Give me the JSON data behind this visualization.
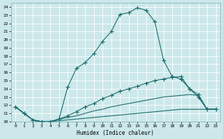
{
  "xlabel": "Humidex (Indice chaleur)",
  "bg_color": "#cce8ea",
  "line_color": "#1a6b6b",
  "grid_color": "#b8d8da",
  "xlim": [
    -0.5,
    23.5
  ],
  "ylim": [
    10,
    24.5
  ],
  "xticks": [
    0,
    1,
    2,
    3,
    4,
    5,
    6,
    7,
    8,
    9,
    10,
    11,
    12,
    13,
    14,
    15,
    16,
    17,
    18,
    19,
    20,
    21,
    22,
    23
  ],
  "yticks": [
    10,
    11,
    12,
    13,
    14,
    15,
    16,
    17,
    18,
    19,
    20,
    21,
    22,
    23,
    24
  ],
  "line1_x": [
    0,
    1,
    2,
    3,
    4,
    5,
    6,
    7,
    8,
    9,
    10,
    11,
    12,
    13,
    14,
    15,
    16,
    17,
    18,
    19,
    20,
    21,
    22,
    23
  ],
  "line1_y": [
    11.8,
    11.0,
    10.2,
    9.8,
    9.9,
    10.3,
    14.2,
    16.5,
    17.2,
    18.3,
    19.8,
    21.0,
    23.1,
    23.3,
    23.9,
    23.6,
    22.2,
    17.5,
    15.5,
    15.2,
    14.0,
    13.0,
    11.5,
    11.5
  ],
  "line2_x": [
    0,
    1,
    2,
    3,
    4,
    5,
    6,
    7,
    8,
    9,
    10,
    11,
    12,
    13,
    14,
    15,
    16,
    17,
    18,
    19,
    20,
    21,
    22,
    23
  ],
  "line2_y": [
    11.8,
    11.0,
    10.2,
    10.0,
    10.0,
    10.3,
    10.7,
    11.2,
    11.8,
    12.2,
    12.8,
    13.2,
    13.7,
    14.0,
    14.3,
    14.7,
    15.0,
    15.2,
    15.4,
    15.5,
    14.0,
    13.3,
    11.5,
    11.5
  ],
  "line3_x": [
    0,
    1,
    2,
    3,
    4,
    5,
    6,
    7,
    8,
    9,
    10,
    11,
    12,
    13,
    14,
    15,
    16,
    17,
    18,
    19,
    20,
    21,
    22,
    23
  ],
  "line3_y": [
    11.8,
    11.0,
    10.2,
    10.0,
    10.0,
    10.3,
    10.5,
    10.7,
    11.0,
    11.3,
    11.5,
    11.8,
    12.0,
    12.2,
    12.4,
    12.6,
    12.8,
    13.0,
    13.1,
    13.2,
    13.3,
    13.2,
    11.5,
    11.5
  ],
  "line4_x": [
    0,
    1,
    2,
    3,
    4,
    5,
    6,
    7,
    8,
    9,
    10,
    11,
    12,
    13,
    14,
    15,
    16,
    17,
    18,
    19,
    20,
    21,
    22,
    23
  ],
  "line4_y": [
    11.8,
    11.0,
    10.2,
    10.0,
    10.0,
    10.1,
    10.2,
    10.3,
    10.4,
    10.5,
    10.6,
    10.7,
    10.8,
    10.9,
    11.0,
    11.1,
    11.2,
    11.3,
    11.4,
    11.5,
    11.5,
    11.5,
    11.5,
    11.5
  ]
}
